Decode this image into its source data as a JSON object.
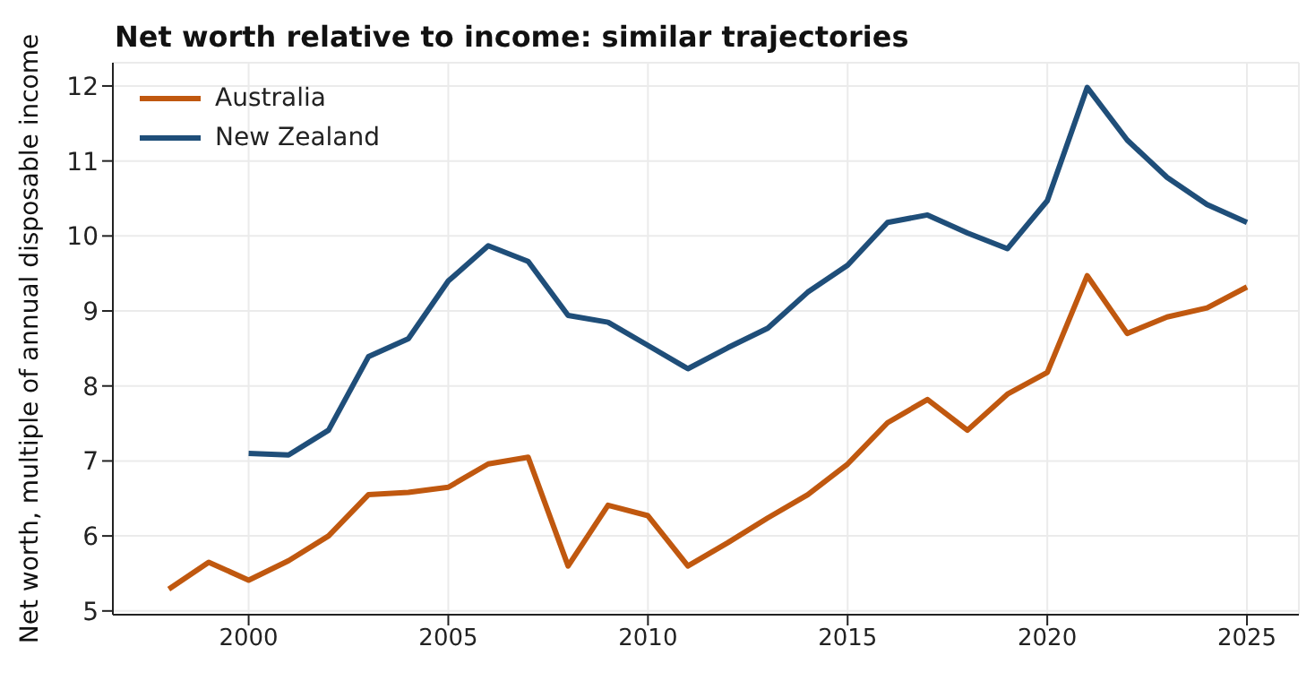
{
  "chart_data": {
    "type": "line",
    "title": "Net worth relative to income: similar trajectories",
    "ylabel": "Net worth, multiple of annual disposable income",
    "x": [
      1998,
      1999,
      2000,
      2001,
      2002,
      2003,
      2004,
      2005,
      2006,
      2007,
      2008,
      2009,
      2010,
      2011,
      2012,
      2013,
      2014,
      2015,
      2016,
      2017,
      2018,
      2019,
      2020,
      2021,
      2022,
      2023,
      2024,
      2025
    ],
    "series": [
      {
        "name": "Australia",
        "color": "#c0580f",
        "values": [
          5.29,
          5.65,
          5.41,
          5.67,
          6.0,
          6.55,
          6.58,
          6.65,
          6.96,
          7.05,
          5.6,
          6.41,
          6.27,
          5.6,
          5.91,
          6.24,
          6.55,
          6.96,
          7.51,
          7.82,
          7.41,
          7.89,
          8.18,
          9.47,
          8.7,
          8.92,
          9.04,
          9.32
        ]
      },
      {
        "name": "New Zealand",
        "color": "#1f4e79",
        "values": [
          null,
          null,
          7.1,
          7.08,
          7.41,
          8.39,
          8.63,
          9.4,
          9.87,
          9.66,
          8.94,
          8.85,
          8.54,
          8.23,
          8.51,
          8.77,
          9.25,
          9.61,
          10.18,
          10.28,
          10.04,
          9.83,
          10.47,
          11.98,
          11.28,
          10.78,
          10.42,
          10.18
        ]
      }
    ],
    "xlim": [
      1996.6,
      2026.3
    ],
    "xticks": [
      2000,
      2005,
      2010,
      2015,
      2020,
      2025
    ],
    "ylim": [
      4.95,
      12.31
    ],
    "yticks": [
      5,
      6,
      7,
      8,
      9,
      10,
      11,
      12
    ],
    "grid": true,
    "legend": "top left",
    "line_style": "solid",
    "marker": "none"
  }
}
